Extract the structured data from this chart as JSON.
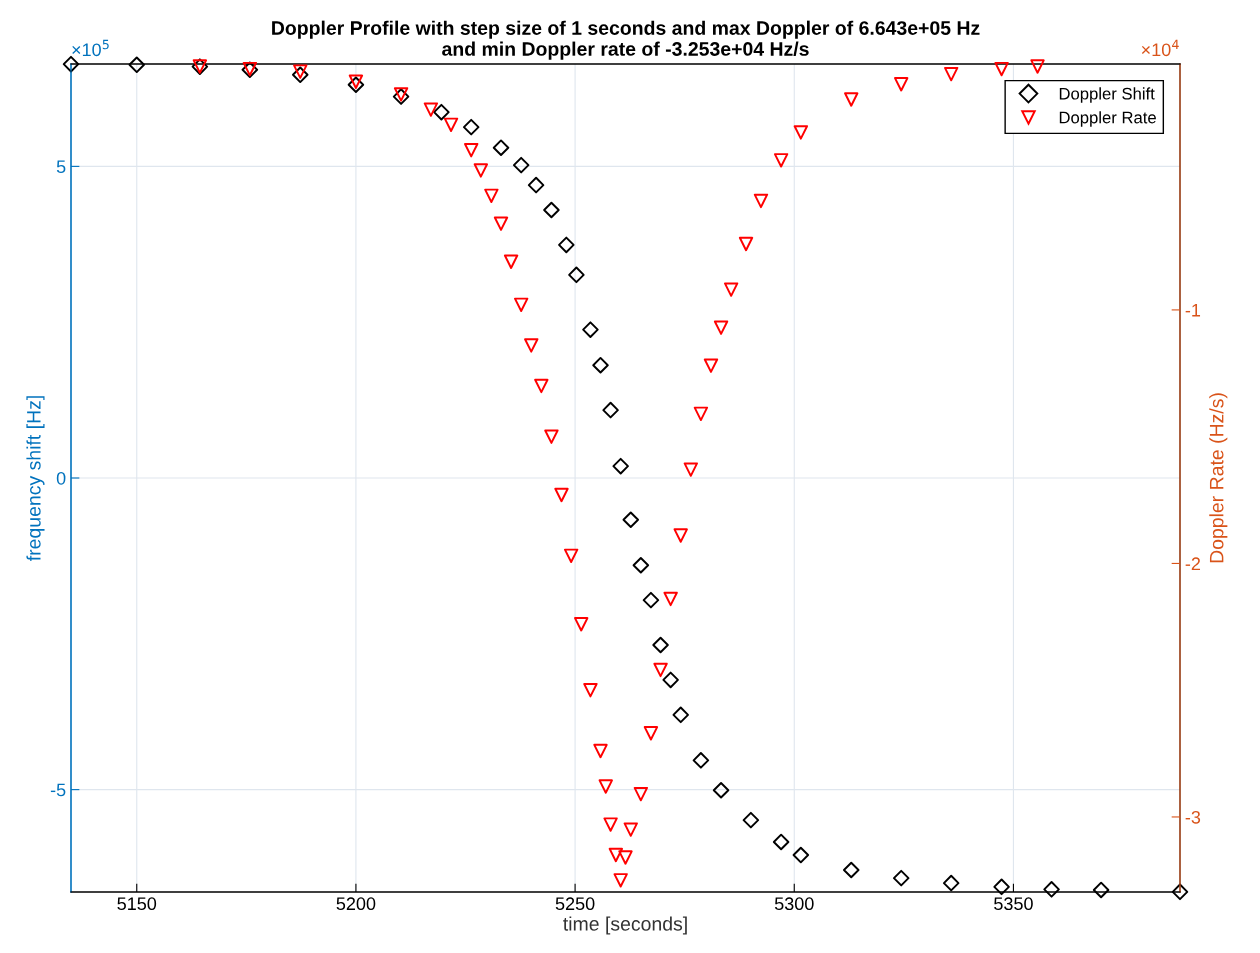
{
  "chart_data": {
    "type": "scatter",
    "title": "Doppler Profile with step size of 1 seconds and max Doppler of 6.643e+05 Hz\nand min Doppler rate of -3.253e+04 Hz/s",
    "xlabel": "time [seconds]",
    "ylabel": "frequency shift [Hz]",
    "y2label": "Doppler Rate (Hz/s)",
    "xlim": [
      5135,
      5388
    ],
    "xticks": [
      5150,
      5200,
      5250,
      5300,
      5350
    ],
    "ylim": [
      -6.643,
      6.643
    ],
    "yticks": [
      -5,
      0,
      5
    ],
    "y2lim": [
      -3.296,
      -0.03
    ],
    "y2ticks": [
      -3,
      -2,
      -1
    ],
    "annotations": [
      "×10$^{5}$",
      "×10$^{4}$"
    ],
    "grid": true,
    "legend": "top right",
    "series": [
      {
        "name": "Doppler Shift",
        "color": "#000000",
        "marker": "diamond",
        "x": [
          5135,
          5150,
          5164.4,
          5175.8,
          5187.3,
          5200,
          5210.3,
          5219.5,
          5226.3,
          5233.1,
          5237.7,
          5241.1,
          5244.6,
          5248,
          5250.3,
          5253.5,
          5255.8,
          5258.1,
          5260.4,
          5262.7,
          5265,
          5267.3,
          5269.5,
          5271.8,
          5274.1,
          5278.7,
          5283.3,
          5290.1,
          5297,
          5301.5,
          5313,
          5324.4,
          5335.8,
          5347.3,
          5358.7,
          5370,
          5388
        ],
        "values": [
          6.64,
          6.63,
          6.6,
          6.55,
          6.47,
          6.31,
          6.12,
          5.87,
          5.63,
          5.3,
          5.02,
          4.7,
          4.3,
          3.74,
          3.26,
          2.38,
          1.81,
          1.09,
          0.19,
          -0.67,
          -1.4,
          -1.96,
          -2.68,
          -3.24,
          -3.8,
          -4.53,
          -5.01,
          -5.49,
          -5.84,
          -6.05,
          -6.29,
          -6.42,
          -6.5,
          -6.56,
          -6.6,
          -6.61,
          -6.64
        ]
      },
      {
        "name": "Doppler Rate",
        "color": "#ff0000",
        "marker": "triangle",
        "axis": "y2",
        "x": [
          5164.4,
          5175.8,
          5187.3,
          5200,
          5210.3,
          5217.1,
          5221.7,
          5226.3,
          5228.5,
          5230.9,
          5233.1,
          5235.4,
          5237.7,
          5240,
          5242.3,
          5244.6,
          5246.9,
          5249.1,
          5251.4,
          5253.5,
          5255.8,
          5257,
          5258.1,
          5259.3,
          5260.4,
          5261.5,
          5262.7,
          5265,
          5267.3,
          5269.5,
          5271.8,
          5274.1,
          5276.4,
          5278.7,
          5281,
          5283.3,
          5285.6,
          5289,
          5292.4,
          5297,
          5301.5,
          5313,
          5324.4,
          5335.8,
          5347.3,
          5355.5
        ],
        "values": [
          -0.04,
          -0.05,
          -0.06,
          -0.1,
          -0.15,
          -0.21,
          -0.27,
          -0.37,
          -0.45,
          -0.55,
          -0.66,
          -0.81,
          -0.98,
          -1.14,
          -1.3,
          -1.5,
          -1.73,
          -1.97,
          -2.24,
          -2.5,
          -2.74,
          -2.88,
          -3.03,
          -3.15,
          -3.25,
          -3.16,
          -3.05,
          -2.91,
          -2.67,
          -2.42,
          -2.14,
          -1.89,
          -1.63,
          -1.41,
          -1.22,
          -1.07,
          -0.92,
          -0.74,
          -0.57,
          -0.41,
          -0.3,
          -0.17,
          -0.11,
          -0.07,
          -0.05,
          -0.04
        ]
      }
    ]
  }
}
